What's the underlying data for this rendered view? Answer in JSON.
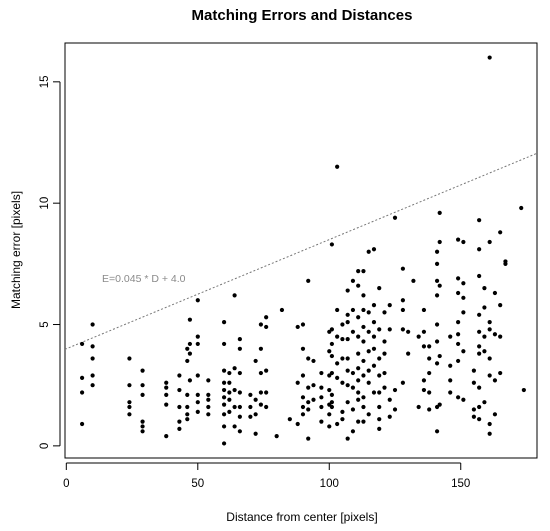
{
  "chart_data": {
    "type": "scatter",
    "title": "Matching Errors and Distances",
    "xlabel": "Distance from center [pixels]",
    "ylabel": "Matching error [pixels]",
    "xlim": [
      -0.5,
      179
    ],
    "ylim": [
      -0.5,
      16.6
    ],
    "xticks": [
      0,
      50,
      100,
      150
    ],
    "yticks": [
      0,
      5,
      10,
      15
    ],
    "grid": false,
    "legend": "none",
    "fit_line": {
      "slope": 0.045,
      "intercept": 4.0,
      "label": "E=0.045 * D + 4.0",
      "style": "dotted",
      "color": "#777777"
    },
    "point_color": "#000000",
    "points": [
      [
        6,
        4.2
      ],
      [
        6,
        2.8
      ],
      [
        6,
        2.2
      ],
      [
        6,
        0.9
      ],
      [
        10,
        5.0
      ],
      [
        10,
        4.1
      ],
      [
        10,
        3.6
      ],
      [
        10,
        2.9
      ],
      [
        10,
        2.5
      ],
      [
        24,
        3.6
      ],
      [
        24,
        2.5
      ],
      [
        24,
        1.8
      ],
      [
        24,
        1.6
      ],
      [
        24,
        1.3
      ],
      [
        29,
        3.1
      ],
      [
        29,
        2.5
      ],
      [
        29,
        2.1
      ],
      [
        29,
        1.0
      ],
      [
        29,
        0.8
      ],
      [
        29,
        0.6
      ],
      [
        38,
        2.6
      ],
      [
        38,
        2.4
      ],
      [
        38,
        2.1
      ],
      [
        38,
        1.7
      ],
      [
        38,
        0.4
      ],
      [
        43,
        2.9
      ],
      [
        43,
        2.3
      ],
      [
        43,
        1.6
      ],
      [
        43,
        1.0
      ],
      [
        43,
        0.7
      ],
      [
        46,
        4.0
      ],
      [
        46,
        3.5
      ],
      [
        46,
        2.1
      ],
      [
        46,
        1.6
      ],
      [
        46,
        1.3
      ],
      [
        46,
        1.1
      ],
      [
        47,
        5.2
      ],
      [
        47,
        4.2
      ],
      [
        47,
        3.8
      ],
      [
        47,
        2.7
      ],
      [
        50,
        6.0
      ],
      [
        50,
        4.5
      ],
      [
        50,
        4.2
      ],
      [
        50,
        2.9
      ],
      [
        50,
        2.1
      ],
      [
        50,
        1.8
      ],
      [
        50,
        1.4
      ],
      [
        54,
        2.7
      ],
      [
        54,
        2.1
      ],
      [
        54,
        1.9
      ],
      [
        54,
        1.6
      ],
      [
        54,
        1.3
      ],
      [
        60,
        5.1
      ],
      [
        60,
        4.2
      ],
      [
        60,
        3.1
      ],
      [
        60,
        2.6
      ],
      [
        60,
        2.3
      ],
      [
        60,
        2.0
      ],
      [
        60,
        1.7
      ],
      [
        60,
        1.3
      ],
      [
        60,
        0.8
      ],
      [
        60,
        0.1
      ],
      [
        62,
        3.0
      ],
      [
        62,
        2.6
      ],
      [
        62,
        2.2
      ],
      [
        62,
        1.9
      ],
      [
        62,
        1.4
      ],
      [
        64,
        6.2
      ],
      [
        64,
        3.2
      ],
      [
        64,
        2.3
      ],
      [
        64,
        1.6
      ],
      [
        64,
        0.8
      ],
      [
        66,
        4.4
      ],
      [
        66,
        4.0
      ],
      [
        66,
        3.0
      ],
      [
        66,
        2.2
      ],
      [
        66,
        1.6
      ],
      [
        66,
        1.2
      ],
      [
        66,
        0.6
      ],
      [
        70,
        2.1
      ],
      [
        70,
        1.6
      ],
      [
        70,
        1.2
      ],
      [
        72,
        3.5
      ],
      [
        72,
        1.9
      ],
      [
        72,
        1.3
      ],
      [
        72,
        0.5
      ],
      [
        74,
        5.0
      ],
      [
        74,
        4.0
      ],
      [
        74,
        3.0
      ],
      [
        74,
        2.2
      ],
      [
        74,
        1.7
      ],
      [
        76,
        5.3
      ],
      [
        76,
        4.9
      ],
      [
        76,
        3.1
      ],
      [
        76,
        2.2
      ],
      [
        76,
        1.6
      ],
      [
        80,
        0.4
      ],
      [
        82,
        5.6
      ],
      [
        85,
        1.1
      ],
      [
        88,
        4.9
      ],
      [
        88,
        2.6
      ],
      [
        88,
        0.9
      ],
      [
        90,
        5.0
      ],
      [
        90,
        4.0
      ],
      [
        90,
        2.9
      ],
      [
        90,
        2.0
      ],
      [
        90,
        1.6
      ],
      [
        90,
        1.3
      ],
      [
        92,
        6.8
      ],
      [
        92,
        3.6
      ],
      [
        92,
        2.4
      ],
      [
        92,
        1.8
      ],
      [
        92,
        1.5
      ],
      [
        92,
        0.3
      ],
      [
        94,
        3.5
      ],
      [
        94,
        2.5
      ],
      [
        94,
        1.9
      ],
      [
        97,
        3.0
      ],
      [
        97,
        2.4
      ],
      [
        97,
        2.0
      ],
      [
        97,
        1.6
      ],
      [
        97,
        1.0
      ],
      [
        100,
        4.7
      ],
      [
        100,
        3.9
      ],
      [
        100,
        2.9
      ],
      [
        100,
        2.3
      ],
      [
        100,
        1.7
      ],
      [
        100,
        1.3
      ],
      [
        100,
        0.8
      ],
      [
        101,
        8.3
      ],
      [
        101,
        4.8
      ],
      [
        101,
        4.2
      ],
      [
        101,
        3.7
      ],
      [
        101,
        3.0
      ],
      [
        101,
        2.1
      ],
      [
        101,
        1.8
      ],
      [
        101,
        1.6
      ],
      [
        103,
        11.5
      ],
      [
        103,
        5.6
      ],
      [
        103,
        4.5
      ],
      [
        103,
        3.4
      ],
      [
        103,
        2.8
      ],
      [
        103,
        0.9
      ],
      [
        105,
        5.0
      ],
      [
        105,
        4.4
      ],
      [
        105,
        3.6
      ],
      [
        105,
        2.6
      ],
      [
        105,
        1.4
      ],
      [
        105,
        1.1
      ],
      [
        107,
        6.4
      ],
      [
        107,
        5.4
      ],
      [
        107,
        5.1
      ],
      [
        107,
        4.4
      ],
      [
        107,
        3.6
      ],
      [
        107,
        3.1
      ],
      [
        107,
        2.5
      ],
      [
        107,
        1.8
      ],
      [
        107,
        0.3
      ],
      [
        109,
        6.8
      ],
      [
        109,
        5.6
      ],
      [
        109,
        4.7
      ],
      [
        109,
        3.0
      ],
      [
        109,
        2.4
      ],
      [
        109,
        1.5
      ],
      [
        109,
        0.6
      ],
      [
        111,
        7.2
      ],
      [
        111,
        6.6
      ],
      [
        111,
        5.3
      ],
      [
        111,
        4.5
      ],
      [
        111,
        3.8
      ],
      [
        111,
        3.2
      ],
      [
        111,
        2.7
      ],
      [
        111,
        2.2
      ],
      [
        111,
        1.9
      ],
      [
        111,
        1.0
      ],
      [
        113,
        7.2
      ],
      [
        113,
        6.2
      ],
      [
        113,
        5.6
      ],
      [
        113,
        4.9
      ],
      [
        113,
        4.3
      ],
      [
        113,
        3.5
      ],
      [
        113,
        2.9
      ],
      [
        113,
        2.0
      ],
      [
        113,
        1.6
      ],
      [
        113,
        1.0
      ],
      [
        115,
        8.0
      ],
      [
        115,
        5.5
      ],
      [
        115,
        4.7
      ],
      [
        115,
        3.9
      ],
      [
        115,
        3.1
      ],
      [
        115,
        2.6
      ],
      [
        115,
        1.3
      ],
      [
        117,
        8.1
      ],
      [
        117,
        5.8
      ],
      [
        117,
        5.1
      ],
      [
        117,
        4.5
      ],
      [
        117,
        4.0
      ],
      [
        117,
        3.3
      ],
      [
        117,
        2.2
      ],
      [
        119,
        6.5
      ],
      [
        119,
        4.8
      ],
      [
        119,
        3.6
      ],
      [
        119,
        2.9
      ],
      [
        119,
        2.2
      ],
      [
        119,
        1.6
      ],
      [
        119,
        1.1
      ],
      [
        119,
        0.7
      ],
      [
        121,
        5.5
      ],
      [
        121,
        4.3
      ],
      [
        121,
        3.8
      ],
      [
        121,
        3.0
      ],
      [
        121,
        2.4
      ],
      [
        123,
        5.8
      ],
      [
        123,
        4.8
      ],
      [
        123,
        1.9
      ],
      [
        123,
        1.2
      ],
      [
        125,
        9.4
      ],
      [
        125,
        2.3
      ],
      [
        125,
        1.5
      ],
      [
        128,
        7.3
      ],
      [
        128,
        6.0
      ],
      [
        128,
        5.6
      ],
      [
        128,
        4.8
      ],
      [
        128,
        2.6
      ],
      [
        130,
        4.7
      ],
      [
        130,
        3.8
      ],
      [
        132,
        6.8
      ],
      [
        134,
        4.5
      ],
      [
        134,
        1.6
      ],
      [
        136,
        5.6
      ],
      [
        136,
        4.7
      ],
      [
        136,
        4.1
      ],
      [
        136,
        2.7
      ],
      [
        136,
        2.3
      ],
      [
        138,
        4.1
      ],
      [
        138,
        3.6
      ],
      [
        138,
        3.0
      ],
      [
        138,
        2.2
      ],
      [
        138,
        1.5
      ],
      [
        141,
        8.0
      ],
      [
        141,
        7.5
      ],
      [
        141,
        6.8
      ],
      [
        141,
        6.2
      ],
      [
        141,
        5.0
      ],
      [
        141,
        4.3
      ],
      [
        141,
        3.4
      ],
      [
        141,
        1.6
      ],
      [
        141,
        0.6
      ],
      [
        142,
        9.6
      ],
      [
        142,
        8.4
      ],
      [
        142,
        6.6
      ],
      [
        142,
        3.7
      ],
      [
        142,
        1.7
      ],
      [
        146,
        4.5
      ],
      [
        146,
        3.3
      ],
      [
        146,
        2.7
      ],
      [
        146,
        2.2
      ],
      [
        149,
        8.5
      ],
      [
        149,
        6.9
      ],
      [
        149,
        6.3
      ],
      [
        149,
        5.1
      ],
      [
        149,
        4.6
      ],
      [
        149,
        4.2
      ],
      [
        149,
        3.5
      ],
      [
        149,
        2.0
      ],
      [
        151,
        8.4
      ],
      [
        151,
        6.7
      ],
      [
        151,
        6.1
      ],
      [
        151,
        5.5
      ],
      [
        151,
        3.9
      ],
      [
        151,
        1.9
      ],
      [
        155,
        3.1
      ],
      [
        155,
        2.6
      ],
      [
        155,
        1.5
      ],
      [
        155,
        1.2
      ],
      [
        157,
        9.3
      ],
      [
        157,
        8.1
      ],
      [
        157,
        7.0
      ],
      [
        157,
        5.4
      ],
      [
        157,
        4.7
      ],
      [
        157,
        4.1
      ],
      [
        157,
        3.8
      ],
      [
        157,
        2.4
      ],
      [
        157,
        1.6
      ],
      [
        157,
        1.1
      ],
      [
        159,
        6.5
      ],
      [
        159,
        5.7
      ],
      [
        159,
        4.5
      ],
      [
        159,
        3.9
      ],
      [
        159,
        1.8
      ],
      [
        161,
        16.0
      ],
      [
        161,
        8.4
      ],
      [
        161,
        5.1
      ],
      [
        161,
        4.8
      ],
      [
        161,
        3.6
      ],
      [
        161,
        2.9
      ],
      [
        161,
        0.9
      ],
      [
        161,
        0.5
      ],
      [
        163,
        6.3
      ],
      [
        163,
        4.6
      ],
      [
        163,
        2.7
      ],
      [
        163,
        1.3
      ],
      [
        165,
        8.8
      ],
      [
        165,
        5.8
      ],
      [
        165,
        4.5
      ],
      [
        165,
        3.0
      ],
      [
        167,
        7.6
      ],
      [
        167,
        7.5
      ],
      [
        173,
        9.8
      ],
      [
        174,
        2.3
      ]
    ]
  }
}
